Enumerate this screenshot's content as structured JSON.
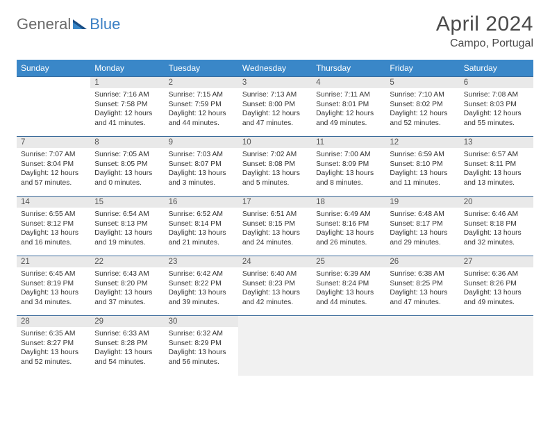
{
  "brand": {
    "part1": "General",
    "part2": "Blue"
  },
  "title": "April 2024",
  "location": "Campo, Portugal",
  "colors": {
    "header_bg": "#3a87c8",
    "header_text": "#ffffff",
    "row_border": "#3a6a9a",
    "datebar_bg": "#e9e9e9",
    "trailing_bg": "#f1f1f1",
    "brand_gray": "#6b6b6b",
    "brand_blue": "#3a7fc4",
    "title_color": "#4a4a4a"
  },
  "weekdays": [
    "Sunday",
    "Monday",
    "Tuesday",
    "Wednesday",
    "Thursday",
    "Friday",
    "Saturday"
  ],
  "weeks": [
    [
      {
        "n": "",
        "sunrise": "",
        "sunset": "",
        "daylight": "",
        "empty": true
      },
      {
        "n": "1",
        "sunrise": "Sunrise: 7:16 AM",
        "sunset": "Sunset: 7:58 PM",
        "daylight": "Daylight: 12 hours and 41 minutes."
      },
      {
        "n": "2",
        "sunrise": "Sunrise: 7:15 AM",
        "sunset": "Sunset: 7:59 PM",
        "daylight": "Daylight: 12 hours and 44 minutes."
      },
      {
        "n": "3",
        "sunrise": "Sunrise: 7:13 AM",
        "sunset": "Sunset: 8:00 PM",
        "daylight": "Daylight: 12 hours and 47 minutes."
      },
      {
        "n": "4",
        "sunrise": "Sunrise: 7:11 AM",
        "sunset": "Sunset: 8:01 PM",
        "daylight": "Daylight: 12 hours and 49 minutes."
      },
      {
        "n": "5",
        "sunrise": "Sunrise: 7:10 AM",
        "sunset": "Sunset: 8:02 PM",
        "daylight": "Daylight: 12 hours and 52 minutes."
      },
      {
        "n": "6",
        "sunrise": "Sunrise: 7:08 AM",
        "sunset": "Sunset: 8:03 PM",
        "daylight": "Daylight: 12 hours and 55 minutes."
      }
    ],
    [
      {
        "n": "7",
        "sunrise": "Sunrise: 7:07 AM",
        "sunset": "Sunset: 8:04 PM",
        "daylight": "Daylight: 12 hours and 57 minutes."
      },
      {
        "n": "8",
        "sunrise": "Sunrise: 7:05 AM",
        "sunset": "Sunset: 8:05 PM",
        "daylight": "Daylight: 13 hours and 0 minutes."
      },
      {
        "n": "9",
        "sunrise": "Sunrise: 7:03 AM",
        "sunset": "Sunset: 8:07 PM",
        "daylight": "Daylight: 13 hours and 3 minutes."
      },
      {
        "n": "10",
        "sunrise": "Sunrise: 7:02 AM",
        "sunset": "Sunset: 8:08 PM",
        "daylight": "Daylight: 13 hours and 5 minutes."
      },
      {
        "n": "11",
        "sunrise": "Sunrise: 7:00 AM",
        "sunset": "Sunset: 8:09 PM",
        "daylight": "Daylight: 13 hours and 8 minutes."
      },
      {
        "n": "12",
        "sunrise": "Sunrise: 6:59 AM",
        "sunset": "Sunset: 8:10 PM",
        "daylight": "Daylight: 13 hours and 11 minutes."
      },
      {
        "n": "13",
        "sunrise": "Sunrise: 6:57 AM",
        "sunset": "Sunset: 8:11 PM",
        "daylight": "Daylight: 13 hours and 13 minutes."
      }
    ],
    [
      {
        "n": "14",
        "sunrise": "Sunrise: 6:55 AM",
        "sunset": "Sunset: 8:12 PM",
        "daylight": "Daylight: 13 hours and 16 minutes."
      },
      {
        "n": "15",
        "sunrise": "Sunrise: 6:54 AM",
        "sunset": "Sunset: 8:13 PM",
        "daylight": "Daylight: 13 hours and 19 minutes."
      },
      {
        "n": "16",
        "sunrise": "Sunrise: 6:52 AM",
        "sunset": "Sunset: 8:14 PM",
        "daylight": "Daylight: 13 hours and 21 minutes."
      },
      {
        "n": "17",
        "sunrise": "Sunrise: 6:51 AM",
        "sunset": "Sunset: 8:15 PM",
        "daylight": "Daylight: 13 hours and 24 minutes."
      },
      {
        "n": "18",
        "sunrise": "Sunrise: 6:49 AM",
        "sunset": "Sunset: 8:16 PM",
        "daylight": "Daylight: 13 hours and 26 minutes."
      },
      {
        "n": "19",
        "sunrise": "Sunrise: 6:48 AM",
        "sunset": "Sunset: 8:17 PM",
        "daylight": "Daylight: 13 hours and 29 minutes."
      },
      {
        "n": "20",
        "sunrise": "Sunrise: 6:46 AM",
        "sunset": "Sunset: 8:18 PM",
        "daylight": "Daylight: 13 hours and 32 minutes."
      }
    ],
    [
      {
        "n": "21",
        "sunrise": "Sunrise: 6:45 AM",
        "sunset": "Sunset: 8:19 PM",
        "daylight": "Daylight: 13 hours and 34 minutes."
      },
      {
        "n": "22",
        "sunrise": "Sunrise: 6:43 AM",
        "sunset": "Sunset: 8:20 PM",
        "daylight": "Daylight: 13 hours and 37 minutes."
      },
      {
        "n": "23",
        "sunrise": "Sunrise: 6:42 AM",
        "sunset": "Sunset: 8:22 PM",
        "daylight": "Daylight: 13 hours and 39 minutes."
      },
      {
        "n": "24",
        "sunrise": "Sunrise: 6:40 AM",
        "sunset": "Sunset: 8:23 PM",
        "daylight": "Daylight: 13 hours and 42 minutes."
      },
      {
        "n": "25",
        "sunrise": "Sunrise: 6:39 AM",
        "sunset": "Sunset: 8:24 PM",
        "daylight": "Daylight: 13 hours and 44 minutes."
      },
      {
        "n": "26",
        "sunrise": "Sunrise: 6:38 AM",
        "sunset": "Sunset: 8:25 PM",
        "daylight": "Daylight: 13 hours and 47 minutes."
      },
      {
        "n": "27",
        "sunrise": "Sunrise: 6:36 AM",
        "sunset": "Sunset: 8:26 PM",
        "daylight": "Daylight: 13 hours and 49 minutes."
      }
    ],
    [
      {
        "n": "28",
        "sunrise": "Sunrise: 6:35 AM",
        "sunset": "Sunset: 8:27 PM",
        "daylight": "Daylight: 13 hours and 52 minutes."
      },
      {
        "n": "29",
        "sunrise": "Sunrise: 6:33 AM",
        "sunset": "Sunset: 8:28 PM",
        "daylight": "Daylight: 13 hours and 54 minutes."
      },
      {
        "n": "30",
        "sunrise": "Sunrise: 6:32 AM",
        "sunset": "Sunset: 8:29 PM",
        "daylight": "Daylight: 13 hours and 56 minutes."
      },
      {
        "trailing": true
      },
      {
        "trailing": true
      },
      {
        "trailing": true
      },
      {
        "trailing": true
      }
    ]
  ]
}
